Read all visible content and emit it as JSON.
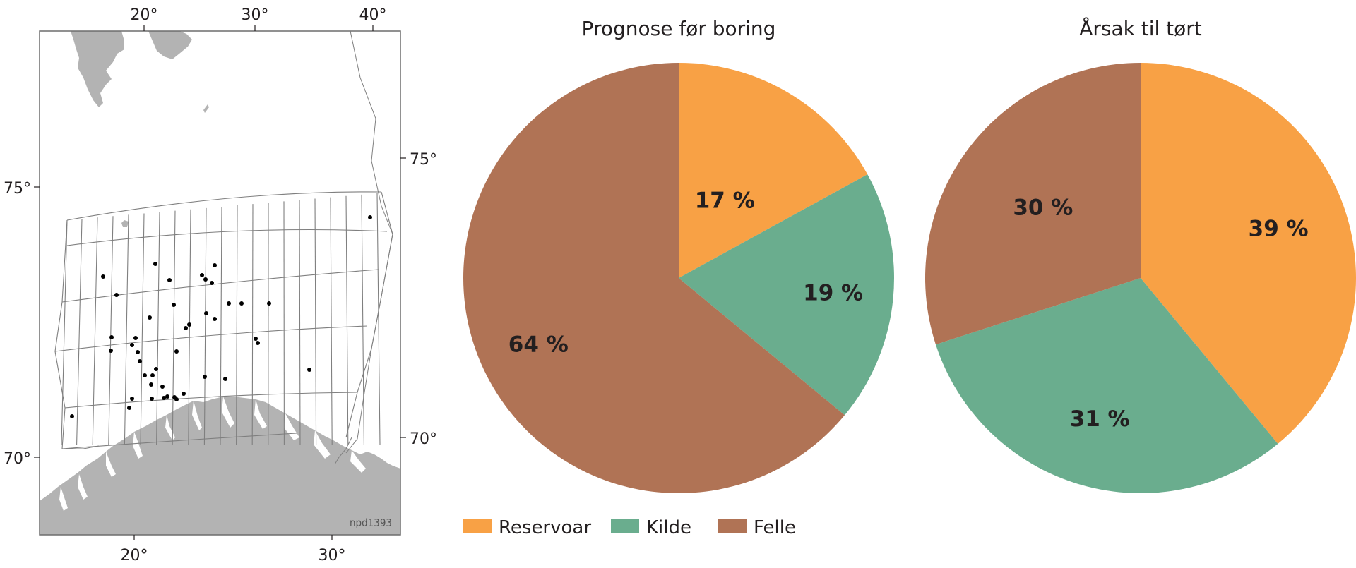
{
  "map": {
    "top_lon_labels": [
      "20°",
      "30°",
      "40°"
    ],
    "bottom_lon_labels": [
      "20°",
      "30°"
    ],
    "left_lat_labels": [
      "75°",
      "70°"
    ],
    "right_lat_labels": [
      "75°",
      "70°"
    ],
    "code": "npd1393",
    "land_color": "#b3b3b3",
    "grid_color": "#7f7f7f",
    "well_color": "#000000"
  },
  "chart_data": [
    {
      "type": "pie",
      "title": "Prognose før boring",
      "slices": [
        {
          "name": "Reservoar",
          "value": 17,
          "label": "17 %",
          "color": "#f8a145"
        },
        {
          "name": "Kilde",
          "value": 19,
          "label": "19 %",
          "color": "#6aad8e"
        },
        {
          "name": "Felle",
          "value": 64,
          "label": "64 %",
          "color": "#b07355"
        }
      ]
    },
    {
      "type": "pie",
      "title": "Årsak til tørt",
      "slices": [
        {
          "name": "Reservoar",
          "value": 39,
          "label": "39 %",
          "color": "#f8a145"
        },
        {
          "name": "Kilde",
          "value": 31,
          "label": "31 %",
          "color": "#6aad8e"
        },
        {
          "name": "Felle",
          "value": 30,
          "label": "30 %",
          "color": "#b07355"
        }
      ]
    }
  ],
  "legend": {
    "placement": "bottom",
    "items": [
      {
        "label": "Reservoar",
        "color": "#f8a145"
      },
      {
        "label": "Kilde",
        "color": "#6aad8e"
      },
      {
        "label": "Felle",
        "color": "#b07355"
      }
    ]
  }
}
